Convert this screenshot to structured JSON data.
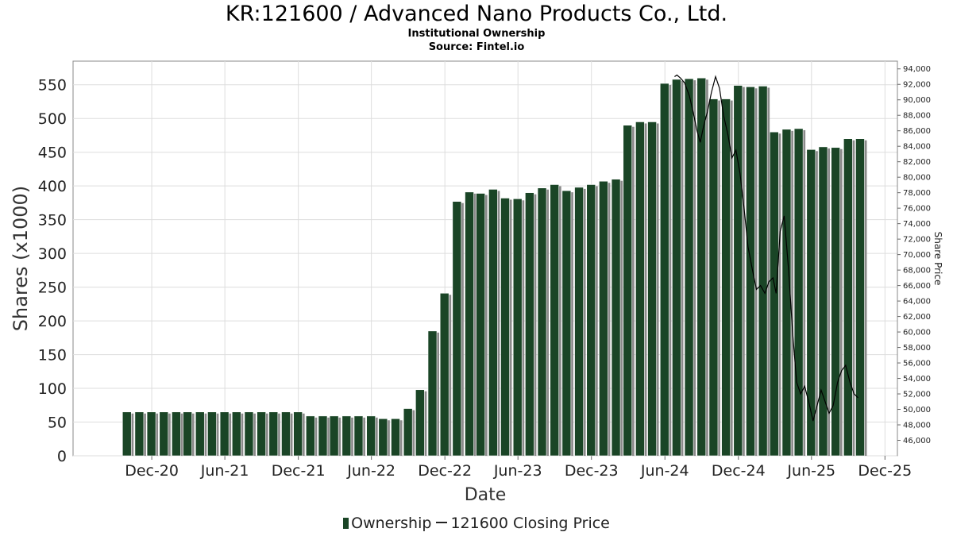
{
  "title": "KR:121600 / Advanced Nano Products Co., Ltd.",
  "subtitle": "Institutional Ownership",
  "source": "Source: Fintel.io",
  "legend": {
    "bar_label": "Ownership",
    "line_label": "121600 Closing Price"
  },
  "colors": {
    "bar": "#1a4526",
    "bar_shadow": "#8a8a8a",
    "line": "#000000",
    "grid": "#dddddd"
  },
  "chart_data": {
    "type": "bar",
    "xlabel": "Date",
    "ylabel": "Shares (x1000)",
    "y2label": "Share Price",
    "ylim": [
      0,
      585
    ],
    "y_ticks": [
      0,
      50,
      100,
      150,
      200,
      250,
      300,
      350,
      400,
      450,
      500,
      550
    ],
    "y2lim": [
      44000,
      95000
    ],
    "y2_ticks": [
      46000,
      48000,
      50000,
      52000,
      54000,
      56000,
      58000,
      60000,
      62000,
      64000,
      66000,
      68000,
      70000,
      72000,
      74000,
      76000,
      78000,
      80000,
      82000,
      84000,
      86000,
      88000,
      90000,
      92000,
      94000
    ],
    "y2_tick_labels": [
      "46,000",
      "48,000",
      "50,000",
      "52,000",
      "54,000",
      "56,000",
      "58,000",
      "60,000",
      "62,000",
      "64,000",
      "66,000",
      "68,000",
      "70,000",
      "72,000",
      "74,000",
      "76,000",
      "78,000",
      "80,000",
      "82,000",
      "84,000",
      "86,000",
      "88,000",
      "90,000",
      "92,000",
      "94,000"
    ],
    "x_ticks": [
      "2020-12-01",
      "2021-06-01",
      "2021-12-01",
      "2022-06-01",
      "2022-12-01",
      "2023-06-01",
      "2023-12-01",
      "2024-06-01",
      "2024-12-01",
      "2025-06-01",
      "2025-12-01"
    ],
    "x_tick_labels": [
      "Dec-20",
      "Jun-21",
      "Dec-21",
      "Jun-22",
      "Dec-22",
      "Jun-23",
      "Dec-23",
      "Jun-24",
      "Dec-24",
      "Jun-25",
      "Dec-25"
    ],
    "x_range": [
      "2020-05-19",
      "2026-01-01"
    ],
    "grid": true,
    "legend_position": "bottom",
    "series": [
      {
        "name": "Ownership",
        "type": "bar",
        "axis": "left",
        "x": [
          "2020-09-30",
          "2020-10-31",
          "2020-11-30",
          "2020-12-31",
          "2021-01-31",
          "2021-02-28",
          "2021-03-31",
          "2021-04-30",
          "2021-05-31",
          "2021-06-30",
          "2021-07-31",
          "2021-08-31",
          "2021-09-30",
          "2021-10-31",
          "2021-11-30",
          "2021-12-31",
          "2022-01-31",
          "2022-02-28",
          "2022-03-31",
          "2022-04-30",
          "2022-05-31",
          "2022-06-30",
          "2022-07-31",
          "2022-08-31",
          "2022-09-30",
          "2022-10-31",
          "2022-11-30",
          "2022-12-31",
          "2023-01-31",
          "2023-02-28",
          "2023-03-31",
          "2023-04-30",
          "2023-05-31",
          "2023-06-30",
          "2023-07-31",
          "2023-08-31",
          "2023-09-30",
          "2023-10-31",
          "2023-11-30",
          "2023-12-31",
          "2024-01-31",
          "2024-02-29",
          "2024-03-31",
          "2024-04-30",
          "2024-05-31",
          "2024-06-30",
          "2024-07-31",
          "2024-08-31",
          "2024-09-30",
          "2024-10-31",
          "2024-11-30",
          "2024-12-31",
          "2025-01-31",
          "2025-02-28",
          "2025-03-31",
          "2025-04-30",
          "2025-05-31",
          "2025-06-30",
          "2025-07-31",
          "2025-08-31",
          "2025-09-30"
        ],
        "values": [
          65,
          65,
          65,
          65,
          65,
          65,
          65,
          65,
          65,
          65,
          65,
          65,
          65,
          65,
          65,
          59,
          59,
          59,
          59,
          59,
          59,
          55,
          55,
          70,
          98,
          185,
          241,
          377,
          391,
          389,
          395,
          382,
          381,
          390,
          397,
          402,
          393,
          398,
          402,
          407,
          410,
          490,
          495,
          495,
          552,
          558,
          559,
          560,
          529,
          529,
          549,
          547,
          548,
          480,
          484,
          485,
          454,
          458,
          457,
          470,
          470
        ]
      },
      {
        "name": "121600 Closing Price",
        "type": "line",
        "axis": "right",
        "x": [
          "2024-06-25",
          "2024-07-01",
          "2024-07-10",
          "2024-07-20",
          "2024-08-01",
          "2024-08-10",
          "2024-08-20",
          "2024-08-28",
          "2024-09-05",
          "2024-09-15",
          "2024-09-25",
          "2024-10-05",
          "2024-10-15",
          "2024-10-25",
          "2024-11-05",
          "2024-11-15",
          "2024-11-25",
          "2024-12-05",
          "2024-12-15",
          "2024-12-25",
          "2025-01-05",
          "2025-01-15",
          "2025-01-25",
          "2025-02-05",
          "2025-02-15",
          "2025-02-25",
          "2025-03-05",
          "2025-03-15",
          "2025-03-25",
          "2025-04-05",
          "2025-04-15",
          "2025-04-25",
          "2025-05-05",
          "2025-05-15",
          "2025-05-25",
          "2025-06-05",
          "2025-06-15",
          "2025-06-25",
          "2025-07-05",
          "2025-07-15",
          "2025-07-25",
          "2025-08-05",
          "2025-08-15",
          "2025-08-25",
          "2025-09-05",
          "2025-09-15",
          "2025-09-25"
        ],
        "values": [
          93000,
          93200,
          92800,
          92200,
          90500,
          88500,
          86000,
          84500,
          86500,
          88500,
          91000,
          93000,
          91500,
          88000,
          85500,
          82500,
          83500,
          80500,
          76000,
          71000,
          68000,
          65500,
          66000,
          65000,
          66500,
          67000,
          65000,
          73000,
          75000,
          68000,
          60000,
          53500,
          52000,
          53000,
          51000,
          48500,
          50500,
          52500,
          51000,
          49500,
          50500,
          53500,
          55000,
          55700,
          53500,
          52000,
          51500
        ]
      }
    ]
  }
}
